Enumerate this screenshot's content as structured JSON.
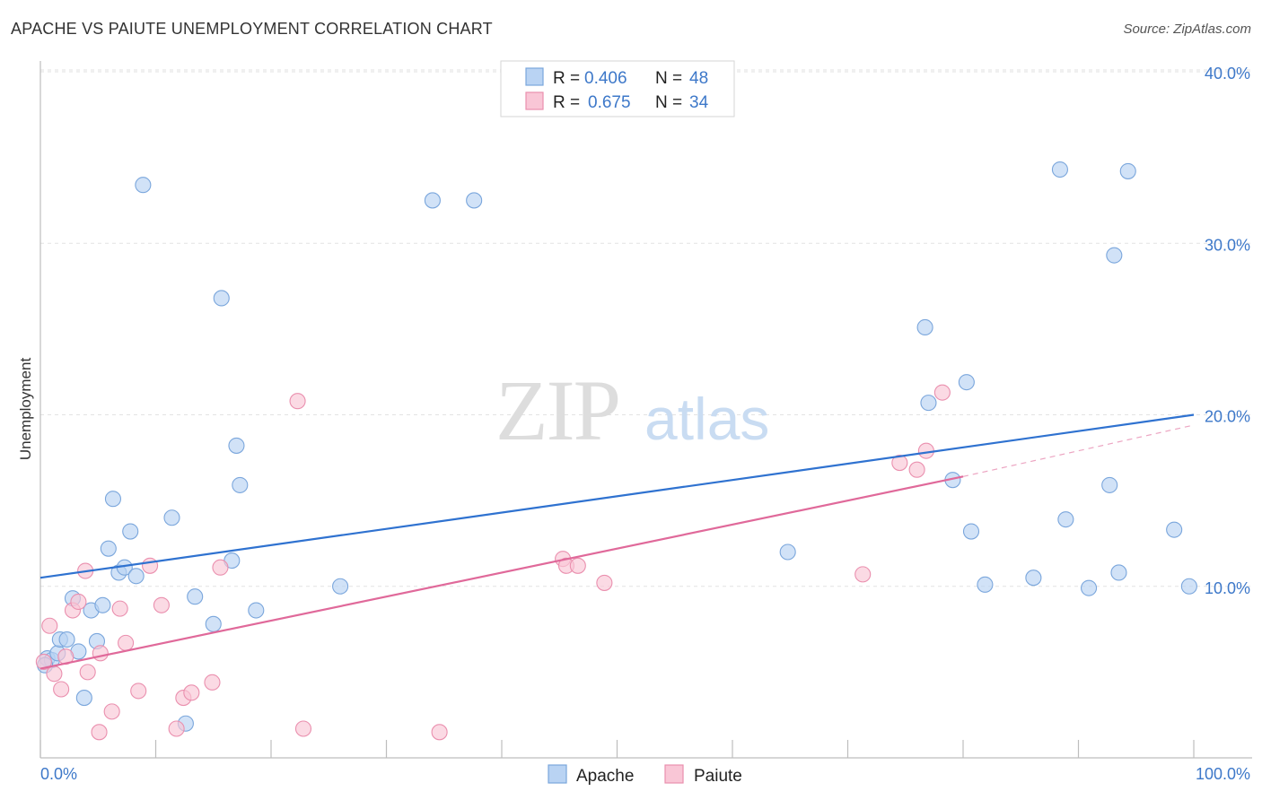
{
  "header": {
    "title": "APACHE VS PAIUTE UNEMPLOYMENT CORRELATION CHART",
    "source": "Source: ZipAtlas.com"
  },
  "watermark": {
    "zip": "ZIP",
    "atlas": "atlas"
  },
  "legend": {
    "rows": [
      {
        "r_label": "R =",
        "r_value": "0.406",
        "n_label": "N =",
        "n_value": "48"
      },
      {
        "r_label": "R =",
        "r_value": "0.675",
        "n_label": "N =",
        "n_value": "34"
      }
    ]
  },
  "colors": {
    "apache_fill": "#b9d3f3",
    "apache_stroke": "#7aa6dc",
    "apache_line": "#2f72d0",
    "paiute_fill": "#f9c6d6",
    "paiute_stroke": "#ea8fae",
    "paiute_line": "#e0699a",
    "grid": "#e2e2e2",
    "tick_text": "#3d78c9"
  },
  "chart_data": {
    "type": "scatter",
    "ylabel": "Unemployment",
    "xlim": [
      0,
      100
    ],
    "ylim": [
      0,
      40
    ],
    "x_tick_labels": [
      "0.0%",
      "100.0%"
    ],
    "y_tick_labels": [
      "10.0%",
      "20.0%",
      "30.0%",
      "40.0%"
    ],
    "y_ticks": [
      10,
      20,
      30,
      40
    ],
    "grid": true,
    "legend_position": "top-center",
    "series": [
      {
        "name": "Apache",
        "points": [
          [
            0.6,
            5.8
          ],
          [
            1.0,
            5.7
          ],
          [
            1.5,
            6.1
          ],
          [
            1.7,
            6.9
          ],
          [
            2.3,
            6.9
          ],
          [
            2.8,
            9.3
          ],
          [
            3.3,
            6.2
          ],
          [
            3.8,
            3.5
          ],
          [
            4.4,
            8.6
          ],
          [
            4.9,
            6.8
          ],
          [
            5.4,
            8.9
          ],
          [
            5.9,
            12.2
          ],
          [
            6.3,
            15.1
          ],
          [
            6.8,
            10.8
          ],
          [
            7.3,
            11.1
          ],
          [
            7.8,
            13.2
          ],
          [
            8.3,
            10.6
          ],
          [
            8.9,
            33.4
          ],
          [
            11.4,
            14.0
          ],
          [
            12.6,
            2.0
          ],
          [
            13.4,
            9.4
          ],
          [
            15.0,
            7.8
          ],
          [
            15.7,
            26.8
          ],
          [
            16.6,
            11.5
          ],
          [
            17.0,
            18.2
          ],
          [
            17.3,
            15.9
          ],
          [
            18.7,
            8.6
          ],
          [
            26.0,
            10.0
          ],
          [
            34.0,
            32.5
          ],
          [
            37.6,
            32.5
          ],
          [
            64.8,
            12.0
          ],
          [
            76.7,
            25.1
          ],
          [
            77.0,
            20.7
          ],
          [
            79.1,
            16.2
          ],
          [
            80.3,
            21.9
          ],
          [
            80.7,
            13.2
          ],
          [
            81.9,
            10.1
          ],
          [
            86.1,
            10.5
          ],
          [
            88.4,
            34.3
          ],
          [
            88.9,
            13.9
          ],
          [
            90.9,
            9.9
          ],
          [
            92.7,
            15.9
          ],
          [
            93.1,
            29.3
          ],
          [
            93.5,
            10.8
          ],
          [
            94.3,
            34.2
          ],
          [
            98.3,
            13.3
          ],
          [
            99.6,
            10.0
          ],
          [
            0.4,
            5.4
          ]
        ],
        "trend": {
          "from": [
            0,
            10.5
          ],
          "to": [
            100,
            20.0
          ]
        }
      },
      {
        "name": "Paiute",
        "points": [
          [
            0.3,
            5.6
          ],
          [
            0.8,
            7.7
          ],
          [
            1.2,
            4.9
          ],
          [
            1.8,
            4.0
          ],
          [
            2.2,
            5.9
          ],
          [
            2.8,
            8.6
          ],
          [
            3.3,
            9.1
          ],
          [
            3.9,
            10.9
          ],
          [
            4.1,
            5.0
          ],
          [
            5.1,
            1.5
          ],
          [
            5.2,
            6.1
          ],
          [
            6.2,
            2.7
          ],
          [
            6.9,
            8.7
          ],
          [
            7.4,
            6.7
          ],
          [
            8.5,
            3.9
          ],
          [
            9.5,
            11.2
          ],
          [
            10.5,
            8.9
          ],
          [
            11.8,
            1.7
          ],
          [
            12.4,
            3.5
          ],
          [
            13.1,
            3.8
          ],
          [
            14.9,
            4.4
          ],
          [
            15.6,
            11.1
          ],
          [
            22.3,
            20.8
          ],
          [
            22.8,
            1.7
          ],
          [
            34.6,
            1.5
          ],
          [
            45.3,
            11.6
          ],
          [
            45.6,
            11.2
          ],
          [
            46.6,
            11.2
          ],
          [
            48.9,
            10.2
          ],
          [
            71.3,
            10.7
          ],
          [
            74.5,
            17.2
          ],
          [
            76.0,
            16.8
          ],
          [
            76.8,
            17.9
          ],
          [
            78.2,
            21.3
          ]
        ],
        "trend": {
          "from": [
            0,
            5.2
          ],
          "to": [
            80,
            16.4
          ],
          "dashed_to": [
            100,
            19.4
          ]
        }
      }
    ]
  },
  "bottom_legend": [
    "Apache",
    "Paiute"
  ]
}
